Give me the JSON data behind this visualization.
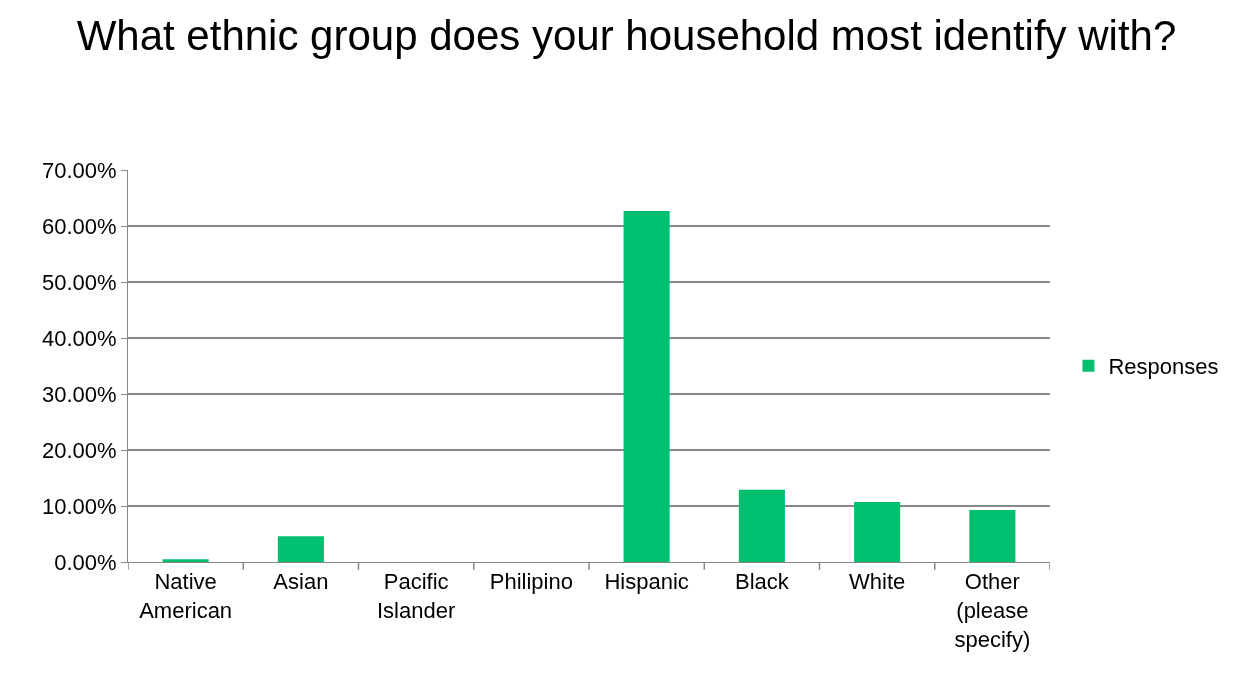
{
  "chart_data": {
    "type": "bar",
    "title": "What ethnic group does your household most identify with?",
    "categories": [
      "Native American",
      "Asian",
      "Pacific Islander",
      "Philipino",
      "Hispanic",
      "Black",
      "White",
      "Other (please specify)"
    ],
    "series": [
      {
        "name": "Responses",
        "color": "#00c070",
        "values": [
          0.5,
          4.6,
          0,
          0,
          62.7,
          12.9,
          10.7,
          9.3
        ]
      }
    ],
    "ylim": [
      0,
      70
    ],
    "yticks": [
      {
        "value": 0,
        "label": "0.00%"
      },
      {
        "value": 10,
        "label": "10.00%"
      },
      {
        "value": 20,
        "label": "20.00%"
      },
      {
        "value": 30,
        "label": "30.00%"
      },
      {
        "value": 40,
        "label": "40.00%"
      },
      {
        "value": 50,
        "label": "50.00%"
      },
      {
        "value": 60,
        "label": "60.00%"
      },
      {
        "value": 70,
        "label": "70.00%"
      }
    ],
    "grid": "y",
    "legend": "right"
  }
}
